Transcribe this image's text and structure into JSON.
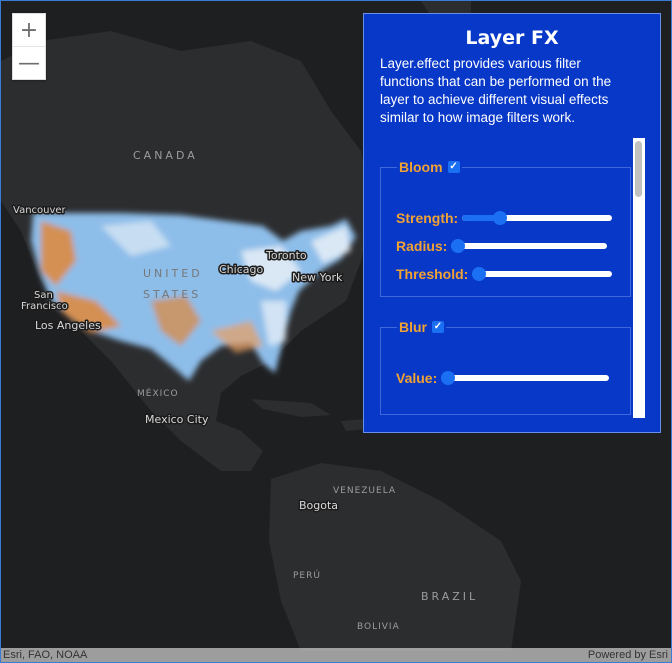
{
  "map": {
    "labels": {
      "canada": "CANADA",
      "united": "UNITED",
      "states": "STATES",
      "mexico": "MÉXICO",
      "venezuela": "VENEZUELA",
      "peru": "PERÚ",
      "brazil": "BRAZIL",
      "bolivia": "BOLIVIA",
      "vancouver": "Vancouver",
      "san": "San",
      "francisco": "Francisco",
      "los_angeles": "Los Angeles",
      "chicago": "Chicago",
      "toronto": "Toronto",
      "new_york": "New York",
      "mexico_city": "Mexico City",
      "bogota": "Bogota"
    },
    "colors": {
      "land": "#2c2d2f",
      "water": "#1e1f21",
      "heat_blue": "#7fb3e8",
      "heat_orange": "#e08838",
      "heat_white": "#eef3f8"
    }
  },
  "zoom": {
    "in_label": "+",
    "out_label": "—"
  },
  "panel": {
    "title": "Layer FX",
    "description": "Layer.effect provides various filter functions that can be performed on the layer to achieve different visual effects similar to how image filters work.",
    "bloom": {
      "legend": "Bloom",
      "enabled": true,
      "strength_label": "Strength:",
      "strength_value": 0.25,
      "radius_label": "Radius:",
      "radius_value": 0.0,
      "threshold_label": "Threshold:",
      "threshold_value": 0.0
    },
    "blur": {
      "legend": "Blur",
      "enabled": true,
      "value_label": "Value:",
      "value_value": 0.02
    }
  },
  "attribution": {
    "left": "Esri, FAO, NOAA",
    "right": "Powered by Esri"
  }
}
